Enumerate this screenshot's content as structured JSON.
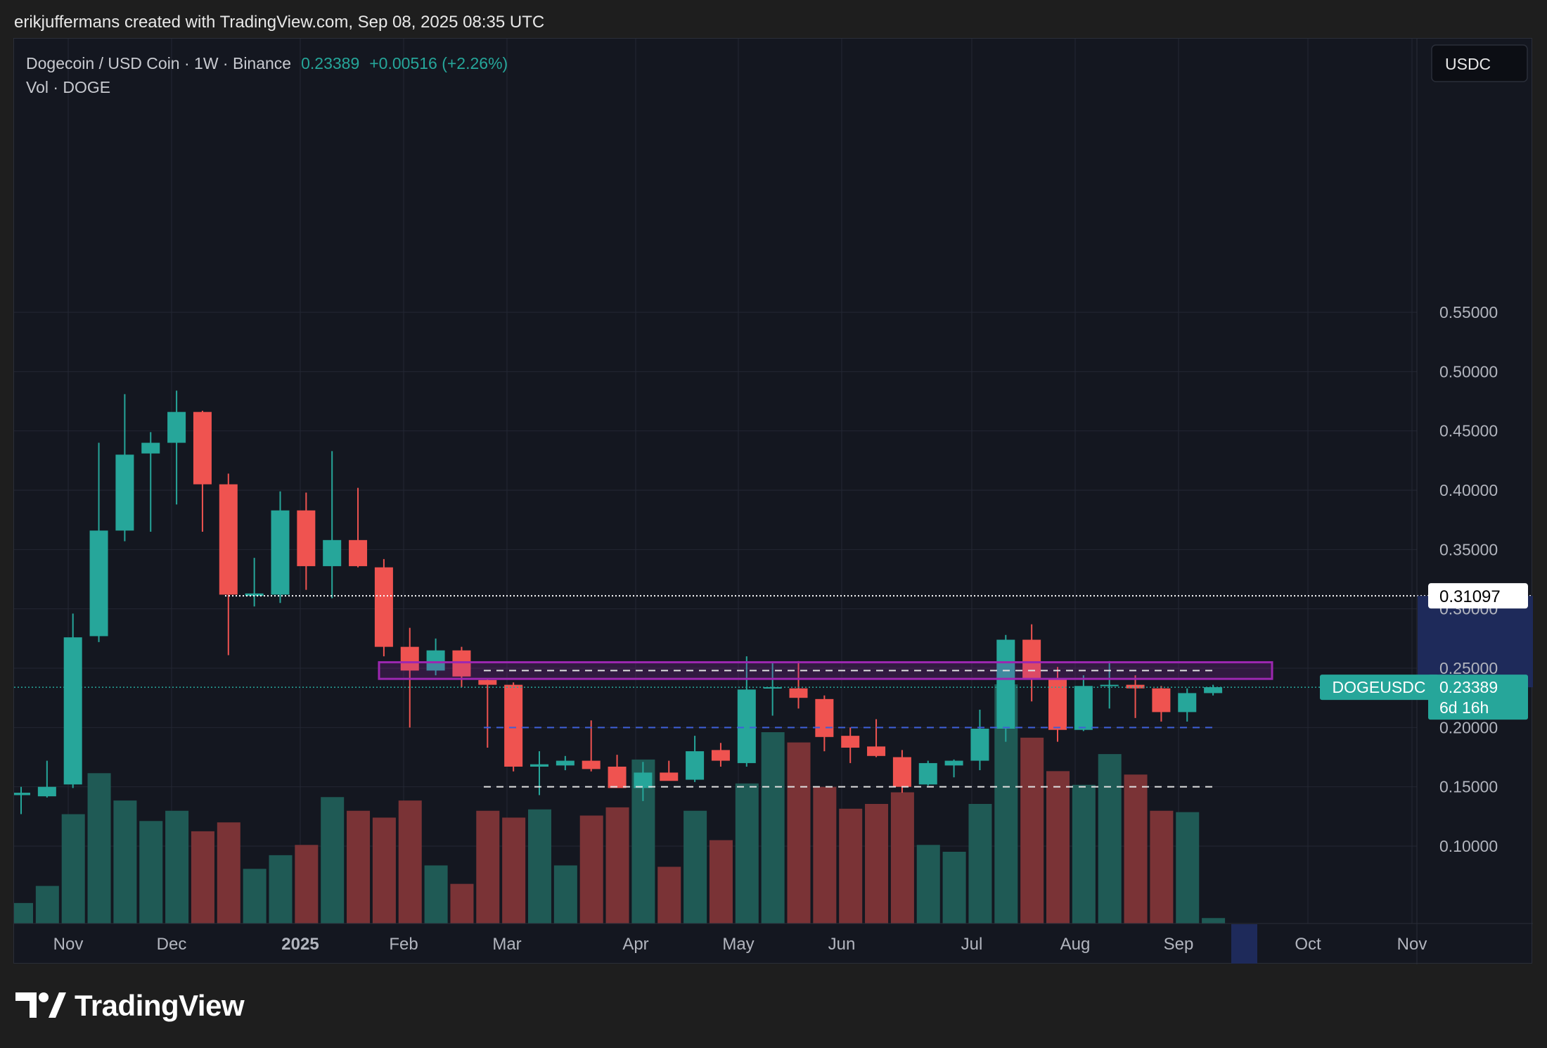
{
  "caption": "erikjuffermans created with TradingView.com, Sep 08, 2025 08:35 UTC",
  "brand": "TradingView",
  "legend": {
    "symbol": "Dogecoin / USD Coin · 1W · Binance",
    "price": "0.23389",
    "change": "+0.00516 (+2.26%)",
    "volume_label": "Vol · DOGE"
  },
  "currency_button": "USDC",
  "price_tag": {
    "symbol": "DOGEUSDC",
    "price": "0.23389",
    "countdown": "6d 16h"
  },
  "level_tag": "0.31097",
  "colors": {
    "up": "#26a69a",
    "down": "#ef5350",
    "vol_up": "#1f5a55",
    "vol_down": "#7a3336",
    "zone": "#9c27b0",
    "dashed_blue": "#3f5fd8"
  },
  "chart_data": {
    "type": "candlestick",
    "title": "Dogecoin / USD Coin · 1W · Binance",
    "interval": "1W",
    "y_axis_ticks": [
      "0.55000",
      "0.50000",
      "0.45000",
      "0.40000",
      "0.35000",
      "0.30000",
      "0.25000",
      "0.20000",
      "0.15000",
      "0.10000"
    ],
    "ylim": [
      0.05,
      0.58
    ],
    "x_axis_labels": [
      "Nov",
      "Dec",
      "2025",
      "Feb",
      "Mar",
      "Apr",
      "May",
      "Jun",
      "Jul",
      "Aug",
      "Sep",
      "Oct",
      "Nov"
    ],
    "candles": [
      {
        "o": 0.143,
        "h": 0.15,
        "l": 0.127,
        "c": 0.145,
        "v": 30
      },
      {
        "o": 0.142,
        "h": 0.172,
        "l": 0.141,
        "c": 0.15,
        "v": 55
      },
      {
        "o": 0.152,
        "h": 0.296,
        "l": 0.149,
        "c": 0.276,
        "v": 160
      },
      {
        "o": 0.277,
        "h": 0.44,
        "l": 0.272,
        "c": 0.366,
        "v": 220
      },
      {
        "o": 0.366,
        "h": 0.481,
        "l": 0.357,
        "c": 0.43,
        "v": 180
      },
      {
        "o": 0.431,
        "h": 0.449,
        "l": 0.365,
        "c": 0.44,
        "v": 150
      },
      {
        "o": 0.44,
        "h": 0.484,
        "l": 0.388,
        "c": 0.466,
        "v": 165
      },
      {
        "o": 0.466,
        "h": 0.467,
        "l": 0.365,
        "c": 0.405,
        "v": 135
      },
      {
        "o": 0.405,
        "h": 0.414,
        "l": 0.261,
        "c": 0.312,
        "v": 148
      },
      {
        "o": 0.311,
        "h": 0.343,
        "l": 0.302,
        "c": 0.313,
        "v": 80
      },
      {
        "o": 0.312,
        "h": 0.399,
        "l": 0.305,
        "c": 0.383,
        "v": 100
      },
      {
        "o": 0.383,
        "h": 0.398,
        "l": 0.316,
        "c": 0.336,
        "v": 115
      },
      {
        "o": 0.336,
        "h": 0.433,
        "l": 0.309,
        "c": 0.358,
        "v": 185
      },
      {
        "o": 0.358,
        "h": 0.402,
        "l": 0.335,
        "c": 0.336,
        "v": 165
      },
      {
        "o": 0.335,
        "h": 0.342,
        "l": 0.26,
        "c": 0.268,
        "v": 155
      },
      {
        "o": 0.268,
        "h": 0.284,
        "l": 0.2,
        "c": 0.248,
        "v": 180
      },
      {
        "o": 0.248,
        "h": 0.275,
        "l": 0.244,
        "c": 0.265,
        "v": 85
      },
      {
        "o": 0.265,
        "h": 0.268,
        "l": 0.234,
        "c": 0.243,
        "v": 58
      },
      {
        "o": 0.24,
        "h": 0.241,
        "l": 0.183,
        "c": 0.236,
        "v": 165
      },
      {
        "o": 0.236,
        "h": 0.238,
        "l": 0.163,
        "c": 0.167,
        "v": 155
      },
      {
        "o": 0.167,
        "h": 0.18,
        "l": 0.143,
        "c": 0.169,
        "v": 167
      },
      {
        "o": 0.168,
        "h": 0.176,
        "l": 0.164,
        "c": 0.172,
        "v": 85
      },
      {
        "o": 0.172,
        "h": 0.206,
        "l": 0.163,
        "c": 0.165,
        "v": 158
      },
      {
        "o": 0.167,
        "h": 0.177,
        "l": 0.15,
        "c": 0.149,
        "v": 170
      },
      {
        "o": 0.149,
        "h": 0.171,
        "l": 0.138,
        "c": 0.162,
        "v": 240
      },
      {
        "o": 0.162,
        "h": 0.172,
        "l": 0.158,
        "c": 0.155,
        "v": 83
      },
      {
        "o": 0.156,
        "h": 0.193,
        "l": 0.154,
        "c": 0.18,
        "v": 165
      },
      {
        "o": 0.181,
        "h": 0.187,
        "l": 0.167,
        "c": 0.172,
        "v": 122
      },
      {
        "o": 0.17,
        "h": 0.26,
        "l": 0.167,
        "c": 0.232,
        "v": 205
      },
      {
        "o": 0.233,
        "h": 0.255,
        "l": 0.21,
        "c": 0.234,
        "v": 280
      },
      {
        "o": 0.233,
        "h": 0.256,
        "l": 0.216,
        "c": 0.225,
        "v": 265
      },
      {
        "o": 0.224,
        "h": 0.227,
        "l": 0.18,
        "c": 0.192,
        "v": 200
      },
      {
        "o": 0.193,
        "h": 0.2,
        "l": 0.17,
        "c": 0.183,
        "v": 168
      },
      {
        "o": 0.184,
        "h": 0.207,
        "l": 0.175,
        "c": 0.176,
        "v": 175
      },
      {
        "o": 0.175,
        "h": 0.181,
        "l": 0.145,
        "c": 0.15,
        "v": 192
      },
      {
        "o": 0.152,
        "h": 0.172,
        "l": 0.151,
        "c": 0.17,
        "v": 115
      },
      {
        "o": 0.168,
        "h": 0.173,
        "l": 0.158,
        "c": 0.172,
        "v": 105
      },
      {
        "o": 0.172,
        "h": 0.215,
        "l": 0.164,
        "c": 0.199,
        "v": 175
      },
      {
        "o": 0.199,
        "h": 0.278,
        "l": 0.188,
        "c": 0.274,
        "v": 350
      },
      {
        "o": 0.274,
        "h": 0.287,
        "l": 0.222,
        "c": 0.241,
        "v": 272
      },
      {
        "o": 0.241,
        "h": 0.251,
        "l": 0.188,
        "c": 0.198,
        "v": 223
      },
      {
        "o": 0.198,
        "h": 0.244,
        "l": 0.197,
        "c": 0.235,
        "v": 203
      },
      {
        "o": 0.235,
        "h": 0.256,
        "l": 0.216,
        "c": 0.236,
        "v": 248
      },
      {
        "o": 0.236,
        "h": 0.244,
        "l": 0.208,
        "c": 0.233,
        "v": 218
      },
      {
        "o": 0.233,
        "h": 0.235,
        "l": 0.205,
        "c": 0.213,
        "v": 165
      },
      {
        "o": 0.213,
        "h": 0.233,
        "l": 0.205,
        "c": 0.229,
        "v": 163
      },
      {
        "o": 0.229,
        "h": 0.236,
        "l": 0.227,
        "c": 0.234,
        "v": 8
      }
    ],
    "annotations": {
      "resistance_zone": [
        0.241,
        0.255
      ],
      "dashed_lines": [
        0.248,
        0.2,
        0.15
      ],
      "dotted_level": 0.31097,
      "current_price": 0.23389
    }
  }
}
